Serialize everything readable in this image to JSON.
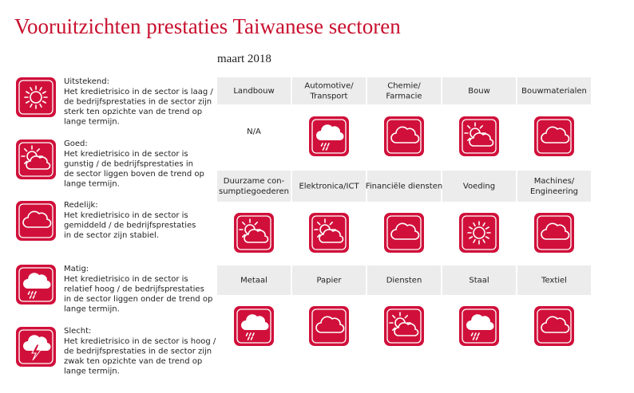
{
  "header": {
    "title": "Vooruitzichten prestaties Taiwanese sectoren",
    "date": "maart 2018"
  },
  "legend": {
    "items": [
      {
        "label": "Uitstekend:",
        "lines": [
          "Het kredietrisico in de sector is laag /",
          "de bedrijfsprestaties in de sector zijn",
          "sterk ten opzichte van de trend op",
          "lange termijn."
        ]
      },
      {
        "label": "Goed:",
        "lines": [
          "Het kredietrisico in de sector is",
          "gunstig / de bedrijfsprestaties in",
          "de sector liggen boven de trend op",
          "lange termijn."
        ]
      },
      {
        "label": "Redelijk:",
        "lines": [
          "Het kredietrisico in de sector is",
          "gemiddeld / de bedrijfsprestaties",
          "in de sector zijn stabiel."
        ]
      },
      {
        "label": "Matig:",
        "lines": [
          "Het kredietrisico in de sector is",
          "relatief hoog / de bedrijfsprestaties",
          "in de sector liggen onder de trend op",
          "lange termijn."
        ]
      },
      {
        "label": "Slecht:",
        "lines": [
          "Het kredietrisico in de sector is hoog /",
          "de bedrijfsprestaties in de sector zijn",
          "zwak ten opzichte van de trend op",
          "lange termijn."
        ]
      }
    ]
  },
  "grid": {
    "rows": [
      [
        {
          "name": [
            "Landbouw"
          ],
          "note": "N/A"
        },
        {
          "name": [
            "Automotive/",
            "Transport"
          ]
        },
        {
          "name": [
            "Chemie/",
            "Farmacie"
          ]
        },
        {
          "name": [
            "Bouw"
          ]
        },
        {
          "name": [
            "Bouwmaterialen"
          ]
        }
      ],
      [
        {
          "name": [
            "Duurzame con-",
            "sumptiegoederen"
          ]
        },
        {
          "name": [
            "Elektronica/ICT"
          ]
        },
        {
          "name": [
            "Financiële diensten"
          ]
        },
        {
          "name": [
            "Voeding"
          ]
        },
        {
          "name": [
            "Machines/",
            "Engineering"
          ]
        }
      ],
      [
        {
          "name": [
            "Metaal"
          ]
        },
        {
          "name": [
            "Papier"
          ]
        },
        {
          "name": [
            "Diensten"
          ]
        },
        {
          "name": [
            "Staal"
          ]
        },
        {
          "name": [
            "Textiel"
          ]
        }
      ]
    ]
  }
}
